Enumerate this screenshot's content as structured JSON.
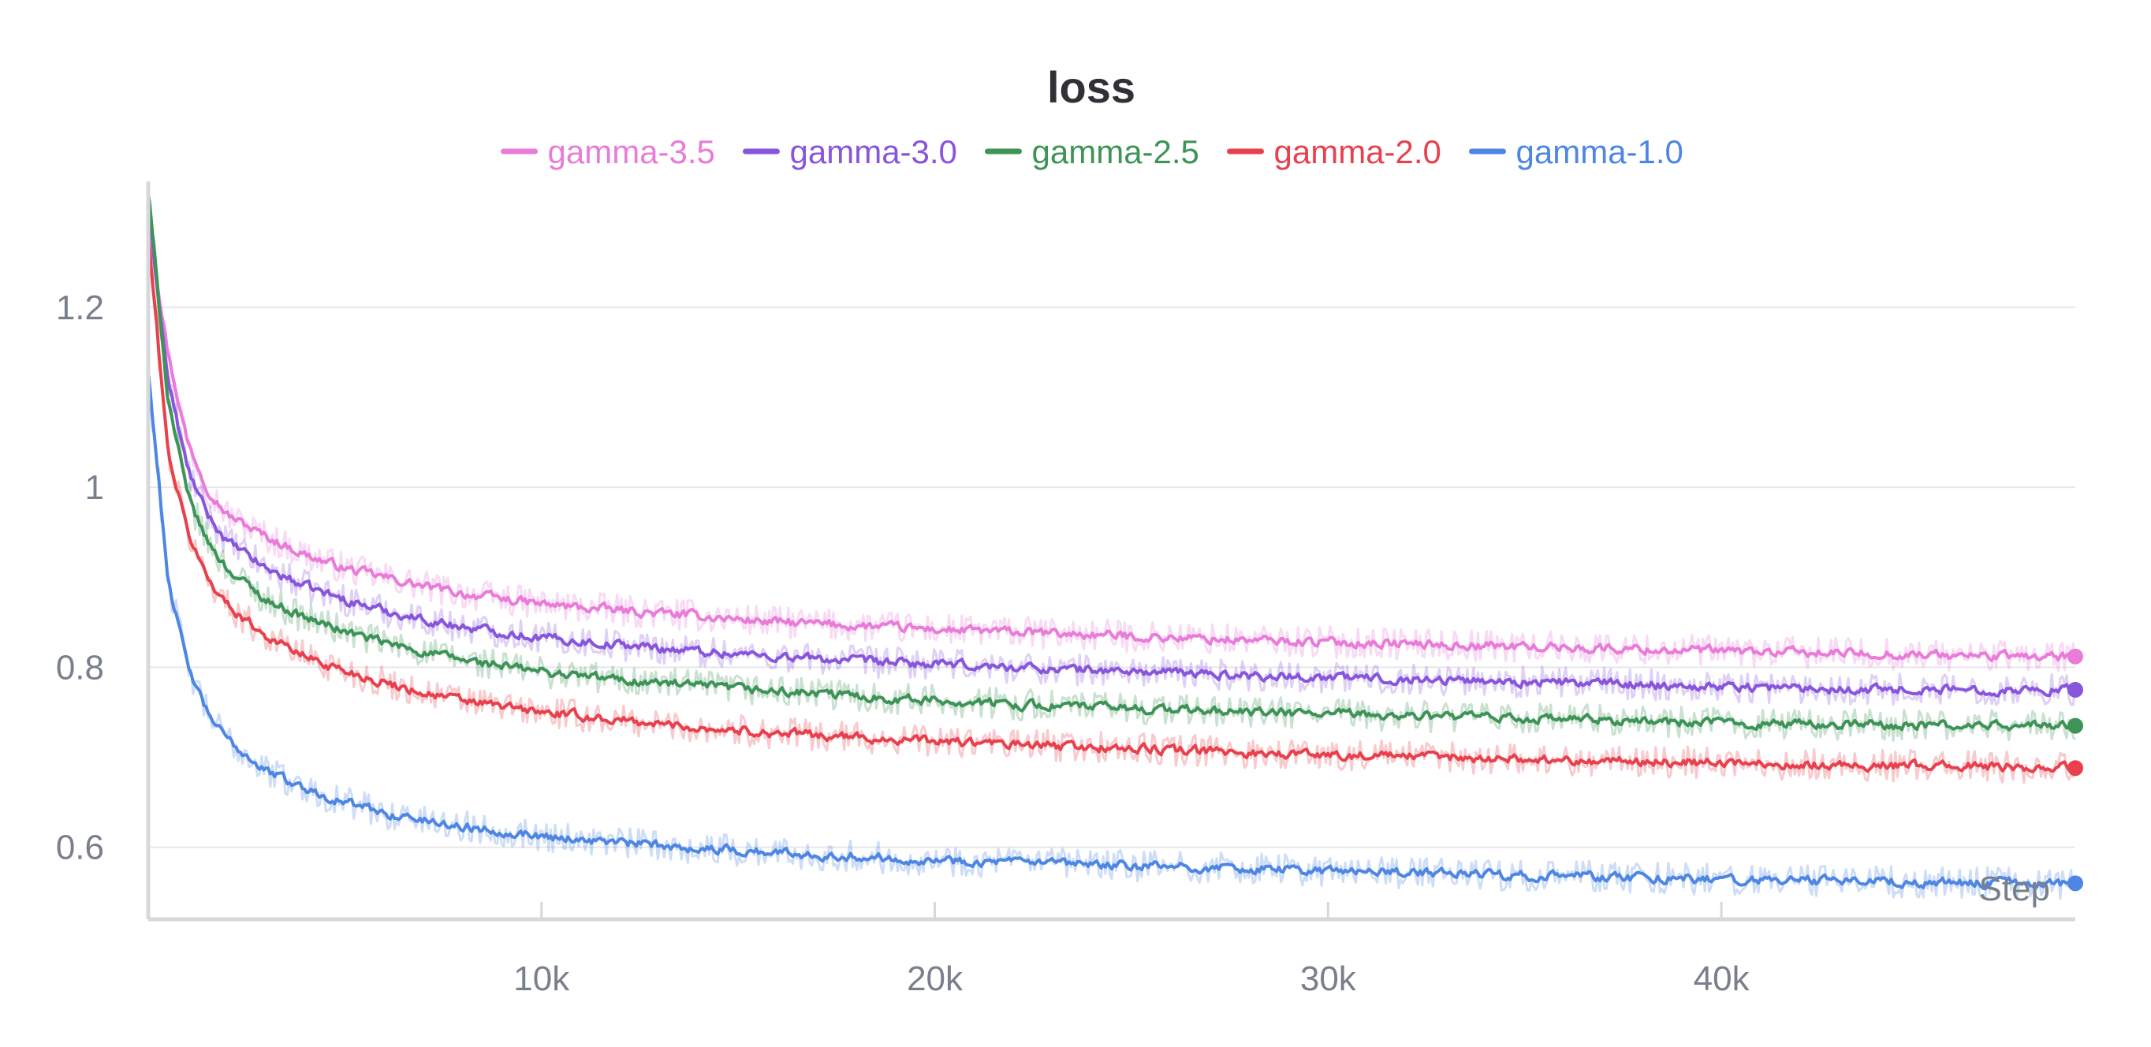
{
  "chart_data": {
    "type": "line",
    "title": "loss",
    "xlabel": "Step",
    "ylabel": "",
    "xlim": [
      0,
      49000
    ],
    "ylim": [
      0.52,
      1.34
    ],
    "x_ticks": [
      10000,
      20000,
      30000,
      40000
    ],
    "x_tick_labels": [
      "10k",
      "20k",
      "30k",
      "40k"
    ],
    "y_ticks": [
      0.6,
      0.8,
      1.0,
      1.2
    ],
    "y_tick_labels": [
      "0.6",
      "0.8",
      "1",
      "1.2"
    ],
    "grid": "horizontal",
    "legend_position": "top-center",
    "x": [
      0,
      500,
      1000,
      1500,
      2000,
      3000,
      4000,
      5000,
      6000,
      7000,
      8000,
      10000,
      12000,
      14000,
      16000,
      18000,
      20000,
      22000,
      24000,
      26000,
      28000,
      30000,
      32000,
      34000,
      36000,
      38000,
      40000,
      42000,
      44000,
      46000,
      48000,
      49000
    ],
    "series": [
      {
        "name": "gamma-3.5",
        "color": "#e97bd9",
        "values": [
          1.3,
          1.15,
          1.05,
          1.0,
          0.97,
          0.945,
          0.925,
          0.91,
          0.9,
          0.89,
          0.882,
          0.87,
          0.863,
          0.857,
          0.85,
          0.846,
          0.842,
          0.839,
          0.836,
          0.833,
          0.83,
          0.828,
          0.826,
          0.824,
          0.822,
          0.82,
          0.818,
          0.816,
          0.815,
          0.813,
          0.812,
          0.812
        ]
      },
      {
        "name": "gamma-3.0",
        "color": "#8855dd",
        "values": [
          1.31,
          1.12,
          1.02,
          0.97,
          0.94,
          0.91,
          0.89,
          0.875,
          0.863,
          0.853,
          0.845,
          0.833,
          0.825,
          0.818,
          0.812,
          0.807,
          0.803,
          0.8,
          0.797,
          0.794,
          0.791,
          0.789,
          0.787,
          0.785,
          0.783,
          0.781,
          0.779,
          0.777,
          0.776,
          0.775,
          0.775,
          0.775
        ]
      },
      {
        "name": "gamma-2.5",
        "color": "#3d9456",
        "values": [
          1.33,
          1.1,
          0.99,
          0.94,
          0.91,
          0.875,
          0.855,
          0.84,
          0.827,
          0.817,
          0.808,
          0.795,
          0.786,
          0.779,
          0.773,
          0.768,
          0.763,
          0.759,
          0.756,
          0.753,
          0.75,
          0.748,
          0.746,
          0.744,
          0.742,
          0.74,
          0.738,
          0.737,
          0.736,
          0.735,
          0.735,
          0.735
        ]
      },
      {
        "name": "gamma-2.0",
        "color": "#e8404d",
        "values": [
          1.28,
          1.04,
          0.95,
          0.9,
          0.87,
          0.835,
          0.812,
          0.796,
          0.783,
          0.772,
          0.763,
          0.75,
          0.741,
          0.733,
          0.727,
          0.722,
          0.718,
          0.714,
          0.711,
          0.708,
          0.705,
          0.703,
          0.701,
          0.699,
          0.697,
          0.695,
          0.694,
          0.692,
          0.691,
          0.69,
          0.689,
          0.688
        ]
      },
      {
        "name": "gamma-1.0",
        "color": "#4e86e4",
        "values": [
          1.13,
          0.9,
          0.8,
          0.75,
          0.72,
          0.685,
          0.665,
          0.65,
          0.638,
          0.63,
          0.623,
          0.613,
          0.605,
          0.599,
          0.594,
          0.59,
          0.586,
          0.583,
          0.58,
          0.578,
          0.576,
          0.574,
          0.572,
          0.57,
          0.568,
          0.566,
          0.564,
          0.563,
          0.562,
          0.561,
          0.56,
          0.56
        ]
      }
    ]
  }
}
